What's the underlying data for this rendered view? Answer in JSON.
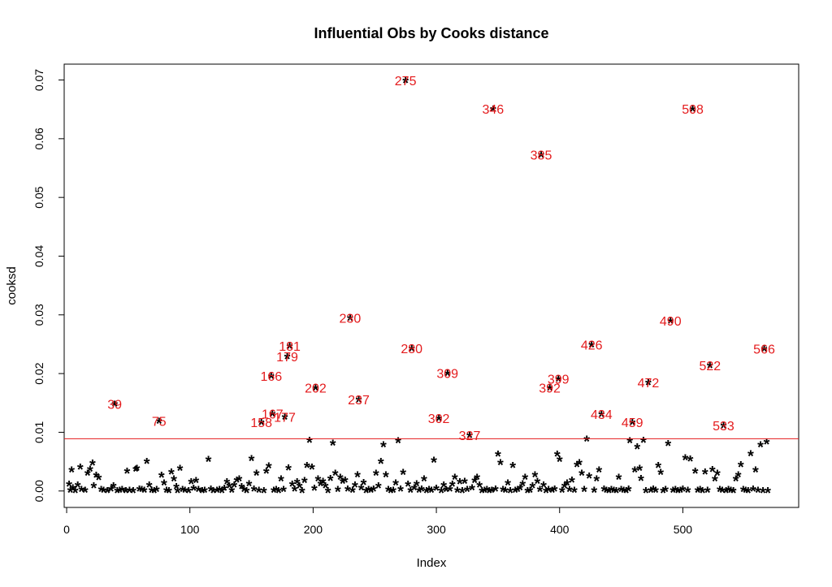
{
  "chart_data": {
    "type": "scatter",
    "title": "Influential Obs by Cooks distance",
    "xlabel": "Index",
    "ylabel": "cooksd",
    "xlim": [
      -2,
      594
    ],
    "ylim": [
      -0.0028,
      0.0727
    ],
    "xticks": [
      0,
      100,
      200,
      300,
      400,
      500
    ],
    "yticks": [
      0.0,
      0.01,
      0.02,
      0.03,
      0.04,
      0.05,
      0.06,
      0.07
    ],
    "ytick_labels": [
      "0.00",
      "0.01",
      "0.02",
      "0.03",
      "0.04",
      "0.05",
      "0.06",
      "0.07"
    ],
    "point_marker": "*",
    "threshold": {
      "value": 0.0089,
      "color": "#e41a1c"
    },
    "label_color": "#e41a1c",
    "influential": [
      {
        "x": 39,
        "y": 0.0148,
        "label": "39"
      },
      {
        "x": 75,
        "y": 0.0119,
        "label": "75"
      },
      {
        "x": 158,
        "y": 0.0117,
        "label": "158"
      },
      {
        "x": 166,
        "y": 0.0196,
        "label": "166"
      },
      {
        "x": 167,
        "y": 0.0132,
        "label": "167"
      },
      {
        "x": 177,
        "y": 0.0126,
        "label": "177"
      },
      {
        "x": 179,
        "y": 0.0229,
        "label": "179"
      },
      {
        "x": 181,
        "y": 0.0247,
        "label": "181"
      },
      {
        "x": 202,
        "y": 0.0176,
        "label": "202"
      },
      {
        "x": 230,
        "y": 0.0295,
        "label": "230"
      },
      {
        "x": 237,
        "y": 0.0156,
        "label": "237"
      },
      {
        "x": 275,
        "y": 0.0699,
        "label": "275"
      },
      {
        "x": 280,
        "y": 0.0243,
        "label": "280"
      },
      {
        "x": 302,
        "y": 0.0124,
        "label": "302"
      },
      {
        "x": 309,
        "y": 0.0201,
        "label": "309"
      },
      {
        "x": 327,
        "y": 0.0095,
        "label": "327"
      },
      {
        "x": 346,
        "y": 0.0651,
        "label": "346"
      },
      {
        "x": 385,
        "y": 0.0573,
        "label": "385"
      },
      {
        "x": 392,
        "y": 0.0176,
        "label": "392"
      },
      {
        "x": 399,
        "y": 0.0191,
        "label": "399"
      },
      {
        "x": 426,
        "y": 0.0249,
        "label": "426"
      },
      {
        "x": 434,
        "y": 0.0131,
        "label": "434"
      },
      {
        "x": 459,
        "y": 0.0117,
        "label": "459"
      },
      {
        "x": 472,
        "y": 0.0185,
        "label": "472"
      },
      {
        "x": 490,
        "y": 0.029,
        "label": "490"
      },
      {
        "x": 508,
        "y": 0.0651,
        "label": "508"
      },
      {
        "x": 522,
        "y": 0.0214,
        "label": "522"
      },
      {
        "x": 533,
        "y": 0.0112,
        "label": "533"
      },
      {
        "x": 566,
        "y": 0.0242,
        "label": "566"
      }
    ],
    "points": [
      [
        2,
        0.0012
      ],
      [
        3,
        0.0002
      ],
      [
        4,
        0.0036
      ],
      [
        5,
        0.0006
      ],
      [
        7,
        0.0001
      ],
      [
        9,
        0.0011
      ],
      [
        11,
        0.0041
      ],
      [
        12,
        0.0003
      ],
      [
        15,
        0.0002
      ],
      [
        17,
        0.0031
      ],
      [
        19,
        0.0038
      ],
      [
        21,
        0.0048
      ],
      [
        22,
        0.0009
      ],
      [
        24,
        0.0027
      ],
      [
        26,
        0.0023
      ],
      [
        28,
        0.0003
      ],
      [
        30,
        0.0002
      ],
      [
        33,
        0.0001
      ],
      [
        36,
        0.0004
      ],
      [
        38,
        0.0009
      ],
      [
        41,
        0.0001
      ],
      [
        43,
        0.0002
      ],
      [
        45,
        0.0003
      ],
      [
        48,
        0.0001
      ],
      [
        49,
        0.0034
      ],
      [
        51,
        0.0002
      ],
      [
        54,
        0.0001
      ],
      [
        56,
        0.0038
      ],
      [
        57,
        0.0039
      ],
      [
        59,
        0.0004
      ],
      [
        61,
        0.0003
      ],
      [
        63,
        0.0002
      ],
      [
        65,
        0.0051
      ],
      [
        67,
        0.0011
      ],
      [
        69,
        0.0002
      ],
      [
        71,
        0.0001
      ],
      [
        73,
        0.0003
      ],
      [
        77,
        0.0027
      ],
      [
        79,
        0.0014
      ],
      [
        81,
        0.0002
      ],
      [
        83,
        0.0001
      ],
      [
        85,
        0.0033
      ],
      [
        87,
        0.0021
      ],
      [
        89,
        0.0008
      ],
      [
        90,
        0.0001
      ],
      [
        92,
        0.0039
      ],
      [
        94,
        0.0003
      ],
      [
        96,
        0.0002
      ],
      [
        99,
        0.0001
      ],
      [
        101,
        0.0016
      ],
      [
        103,
        0.0005
      ],
      [
        105,
        0.0018
      ],
      [
        107,
        0.0003
      ],
      [
        110,
        0.0001
      ],
      [
        112,
        0.0002
      ],
      [
        115,
        0.0054
      ],
      [
        117,
        0.0004
      ],
      [
        119,
        0.0001
      ],
      [
        122,
        0.0002
      ],
      [
        124,
        0.0003
      ],
      [
        126,
        0.0001
      ],
      [
        128,
        0.0005
      ],
      [
        130,
        0.0016
      ],
      [
        132,
        0.0009
      ],
      [
        134,
        0.0002
      ],
      [
        136,
        0.0011
      ],
      [
        138,
        0.0019
      ],
      [
        140,
        0.0021
      ],
      [
        142,
        0.0008
      ],
      [
        144,
        0.0003
      ],
      [
        146,
        0.0001
      ],
      [
        148,
        0.0013
      ],
      [
        150,
        0.0056
      ],
      [
        152,
        0.0004
      ],
      [
        154,
        0.0031
      ],
      [
        156,
        0.0002
      ],
      [
        160,
        0.0001
      ],
      [
        162,
        0.0034
      ],
      [
        164,
        0.0043
      ],
      [
        168,
        0.0002
      ],
      [
        170,
        0.0003
      ],
      [
        172,
        0.0001
      ],
      [
        174,
        0.0021
      ],
      [
        176,
        0.0003
      ],
      [
        180,
        0.004
      ],
      [
        183,
        0.0012
      ],
      [
        185,
        0.0004
      ],
      [
        187,
        0.0016
      ],
      [
        189,
        0.0009
      ],
      [
        191,
        0.0001
      ],
      [
        193,
        0.0018
      ],
      [
        195,
        0.0044
      ],
      [
        197,
        0.0087
      ],
      [
        199,
        0.0041
      ],
      [
        201,
        0.0005
      ],
      [
        204,
        0.0021
      ],
      [
        206,
        0.0013
      ],
      [
        208,
        0.0017
      ],
      [
        210,
        0.0009
      ],
      [
        212,
        0.0001
      ],
      [
        214,
        0.0022
      ],
      [
        216,
        0.0082
      ],
      [
        218,
        0.0031
      ],
      [
        220,
        0.0003
      ],
      [
        222,
        0.0024
      ],
      [
        224,
        0.0017
      ],
      [
        226,
        0.0019
      ],
      [
        228,
        0.0004
      ],
      [
        232,
        0.0002
      ],
      [
        234,
        0.0011
      ],
      [
        236,
        0.0028
      ],
      [
        239,
        0.0006
      ],
      [
        241,
        0.0015
      ],
      [
        243,
        0.0001
      ],
      [
        245,
        0.0003
      ],
      [
        247,
        0.0002
      ],
      [
        249,
        0.0004
      ],
      [
        251,
        0.0031
      ],
      [
        253,
        0.0009
      ],
      [
        255,
        0.0051
      ],
      [
        257,
        0.0079
      ],
      [
        259,
        0.0028
      ],
      [
        261,
        0.0003
      ],
      [
        263,
        0.0001
      ],
      [
        265,
        0.0002
      ],
      [
        267,
        0.0014
      ],
      [
        269,
        0.0086
      ],
      [
        271,
        0.0004
      ],
      [
        273,
        0.0032
      ],
      [
        277,
        0.0012
      ],
      [
        279,
        0.0002
      ],
      [
        282,
        0.0006
      ],
      [
        284,
        0.0013
      ],
      [
        286,
        0.0002
      ],
      [
        288,
        0.0004
      ],
      [
        290,
        0.0021
      ],
      [
        292,
        0.0001
      ],
      [
        294,
        0.0003
      ],
      [
        296,
        0.0002
      ],
      [
        298,
        0.0053
      ],
      [
        300,
        0.0005
      ],
      [
        304,
        0.0001
      ],
      [
        306,
        0.0011
      ],
      [
        308,
        0.0003
      ],
      [
        311,
        0.0004
      ],
      [
        313,
        0.0012
      ],
      [
        315,
        0.0024
      ],
      [
        317,
        0.0002
      ],
      [
        319,
        0.0016
      ],
      [
        321,
        0.0001
      ],
      [
        323,
        0.0017
      ],
      [
        325,
        0.0003
      ],
      [
        329,
        0.0006
      ],
      [
        331,
        0.0018
      ],
      [
        333,
        0.0024
      ],
      [
        335,
        0.0011
      ],
      [
        337,
        0.0001
      ],
      [
        339,
        0.0002
      ],
      [
        341,
        0.0003
      ],
      [
        343,
        0.0001
      ],
      [
        345,
        0.0002
      ],
      [
        348,
        0.0004
      ],
      [
        350,
        0.0063
      ],
      [
        352,
        0.0049
      ],
      [
        354,
        0.0003
      ],
      [
        356,
        0.0002
      ],
      [
        358,
        0.0014
      ],
      [
        360,
        0.0001
      ],
      [
        362,
        0.0044
      ],
      [
        364,
        0.0002
      ],
      [
        366,
        0.0003
      ],
      [
        368,
        0.0006
      ],
      [
        370,
        0.0013
      ],
      [
        372,
        0.0024
      ],
      [
        374,
        0.0001
      ],
      [
        376,
        0.0002
      ],
      [
        378,
        0.0009
      ],
      [
        380,
        0.0028
      ],
      [
        382,
        0.0017
      ],
      [
        384,
        0.0003
      ],
      [
        387,
        0.0011
      ],
      [
        389,
        0.0001
      ],
      [
        391,
        0.0003
      ],
      [
        394,
        0.0002
      ],
      [
        396,
        0.0004
      ],
      [
        398,
        0.0063
      ],
      [
        400,
        0.0054
      ],
      [
        402,
        0.0002
      ],
      [
        404,
        0.0009
      ],
      [
        406,
        0.0014
      ],
      [
        408,
        0.0003
      ],
      [
        410,
        0.0019
      ],
      [
        412,
        0.0002
      ],
      [
        414,
        0.0045
      ],
      [
        416,
        0.0049
      ],
      [
        418,
        0.0031
      ],
      [
        420,
        0.0003
      ],
      [
        422,
        0.0089
      ],
      [
        424,
        0.0026
      ],
      [
        428,
        0.0002
      ],
      [
        430,
        0.0021
      ],
      [
        432,
        0.0036
      ],
      [
        436,
        0.0004
      ],
      [
        438,
        0.0002
      ],
      [
        440,
        0.0001
      ],
      [
        442,
        0.0003
      ],
      [
        444,
        0.0002
      ],
      [
        446,
        0.0001
      ],
      [
        448,
        0.0024
      ],
      [
        450,
        0.0003
      ],
      [
        452,
        0.0002
      ],
      [
        454,
        0.0001
      ],
      [
        456,
        0.0004
      ],
      [
        457,
        0.0086
      ],
      [
        461,
        0.0036
      ],
      [
        463,
        0.0076
      ],
      [
        465,
        0.0039
      ],
      [
        466,
        0.0022
      ],
      [
        468,
        0.0087
      ],
      [
        470,
        0.0001
      ],
      [
        474,
        0.0002
      ],
      [
        476,
        0.0004
      ],
      [
        478,
        0.0002
      ],
      [
        480,
        0.0044
      ],
      [
        482,
        0.0032
      ],
      [
        484,
        0.0001
      ],
      [
        486,
        0.0003
      ],
      [
        488,
        0.0081
      ],
      [
        492,
        0.0002
      ],
      [
        494,
        0.0003
      ],
      [
        496,
        0.0001
      ],
      [
        498,
        0.0002
      ],
      [
        500,
        0.0004
      ],
      [
        502,
        0.0057
      ],
      [
        504,
        0.0002
      ],
      [
        506,
        0.0055
      ],
      [
        510,
        0.0034
      ],
      [
        512,
        0.0002
      ],
      [
        514,
        0.0003
      ],
      [
        516,
        0.0001
      ],
      [
        518,
        0.0033
      ],
      [
        520,
        0.0002
      ],
      [
        524,
        0.0037
      ],
      [
        526,
        0.0021
      ],
      [
        528,
        0.0031
      ],
      [
        530,
        0.0003
      ],
      [
        532,
        0.0002
      ],
      [
        535,
        0.0001
      ],
      [
        537,
        0.0003
      ],
      [
        539,
        0.0002
      ],
      [
        541,
        0.0001
      ],
      [
        543,
        0.0021
      ],
      [
        545,
        0.0028
      ],
      [
        547,
        0.0045
      ],
      [
        549,
        0.0003
      ],
      [
        551,
        0.0002
      ],
      [
        553,
        0.0001
      ],
      [
        555,
        0.0064
      ],
      [
        557,
        0.0004
      ],
      [
        559,
        0.0036
      ],
      [
        561,
        0.0002
      ],
      [
        563,
        0.0079
      ],
      [
        565,
        0.0001
      ],
      [
        568,
        0.0084
      ],
      [
        569,
        0.0001
      ]
    ]
  }
}
